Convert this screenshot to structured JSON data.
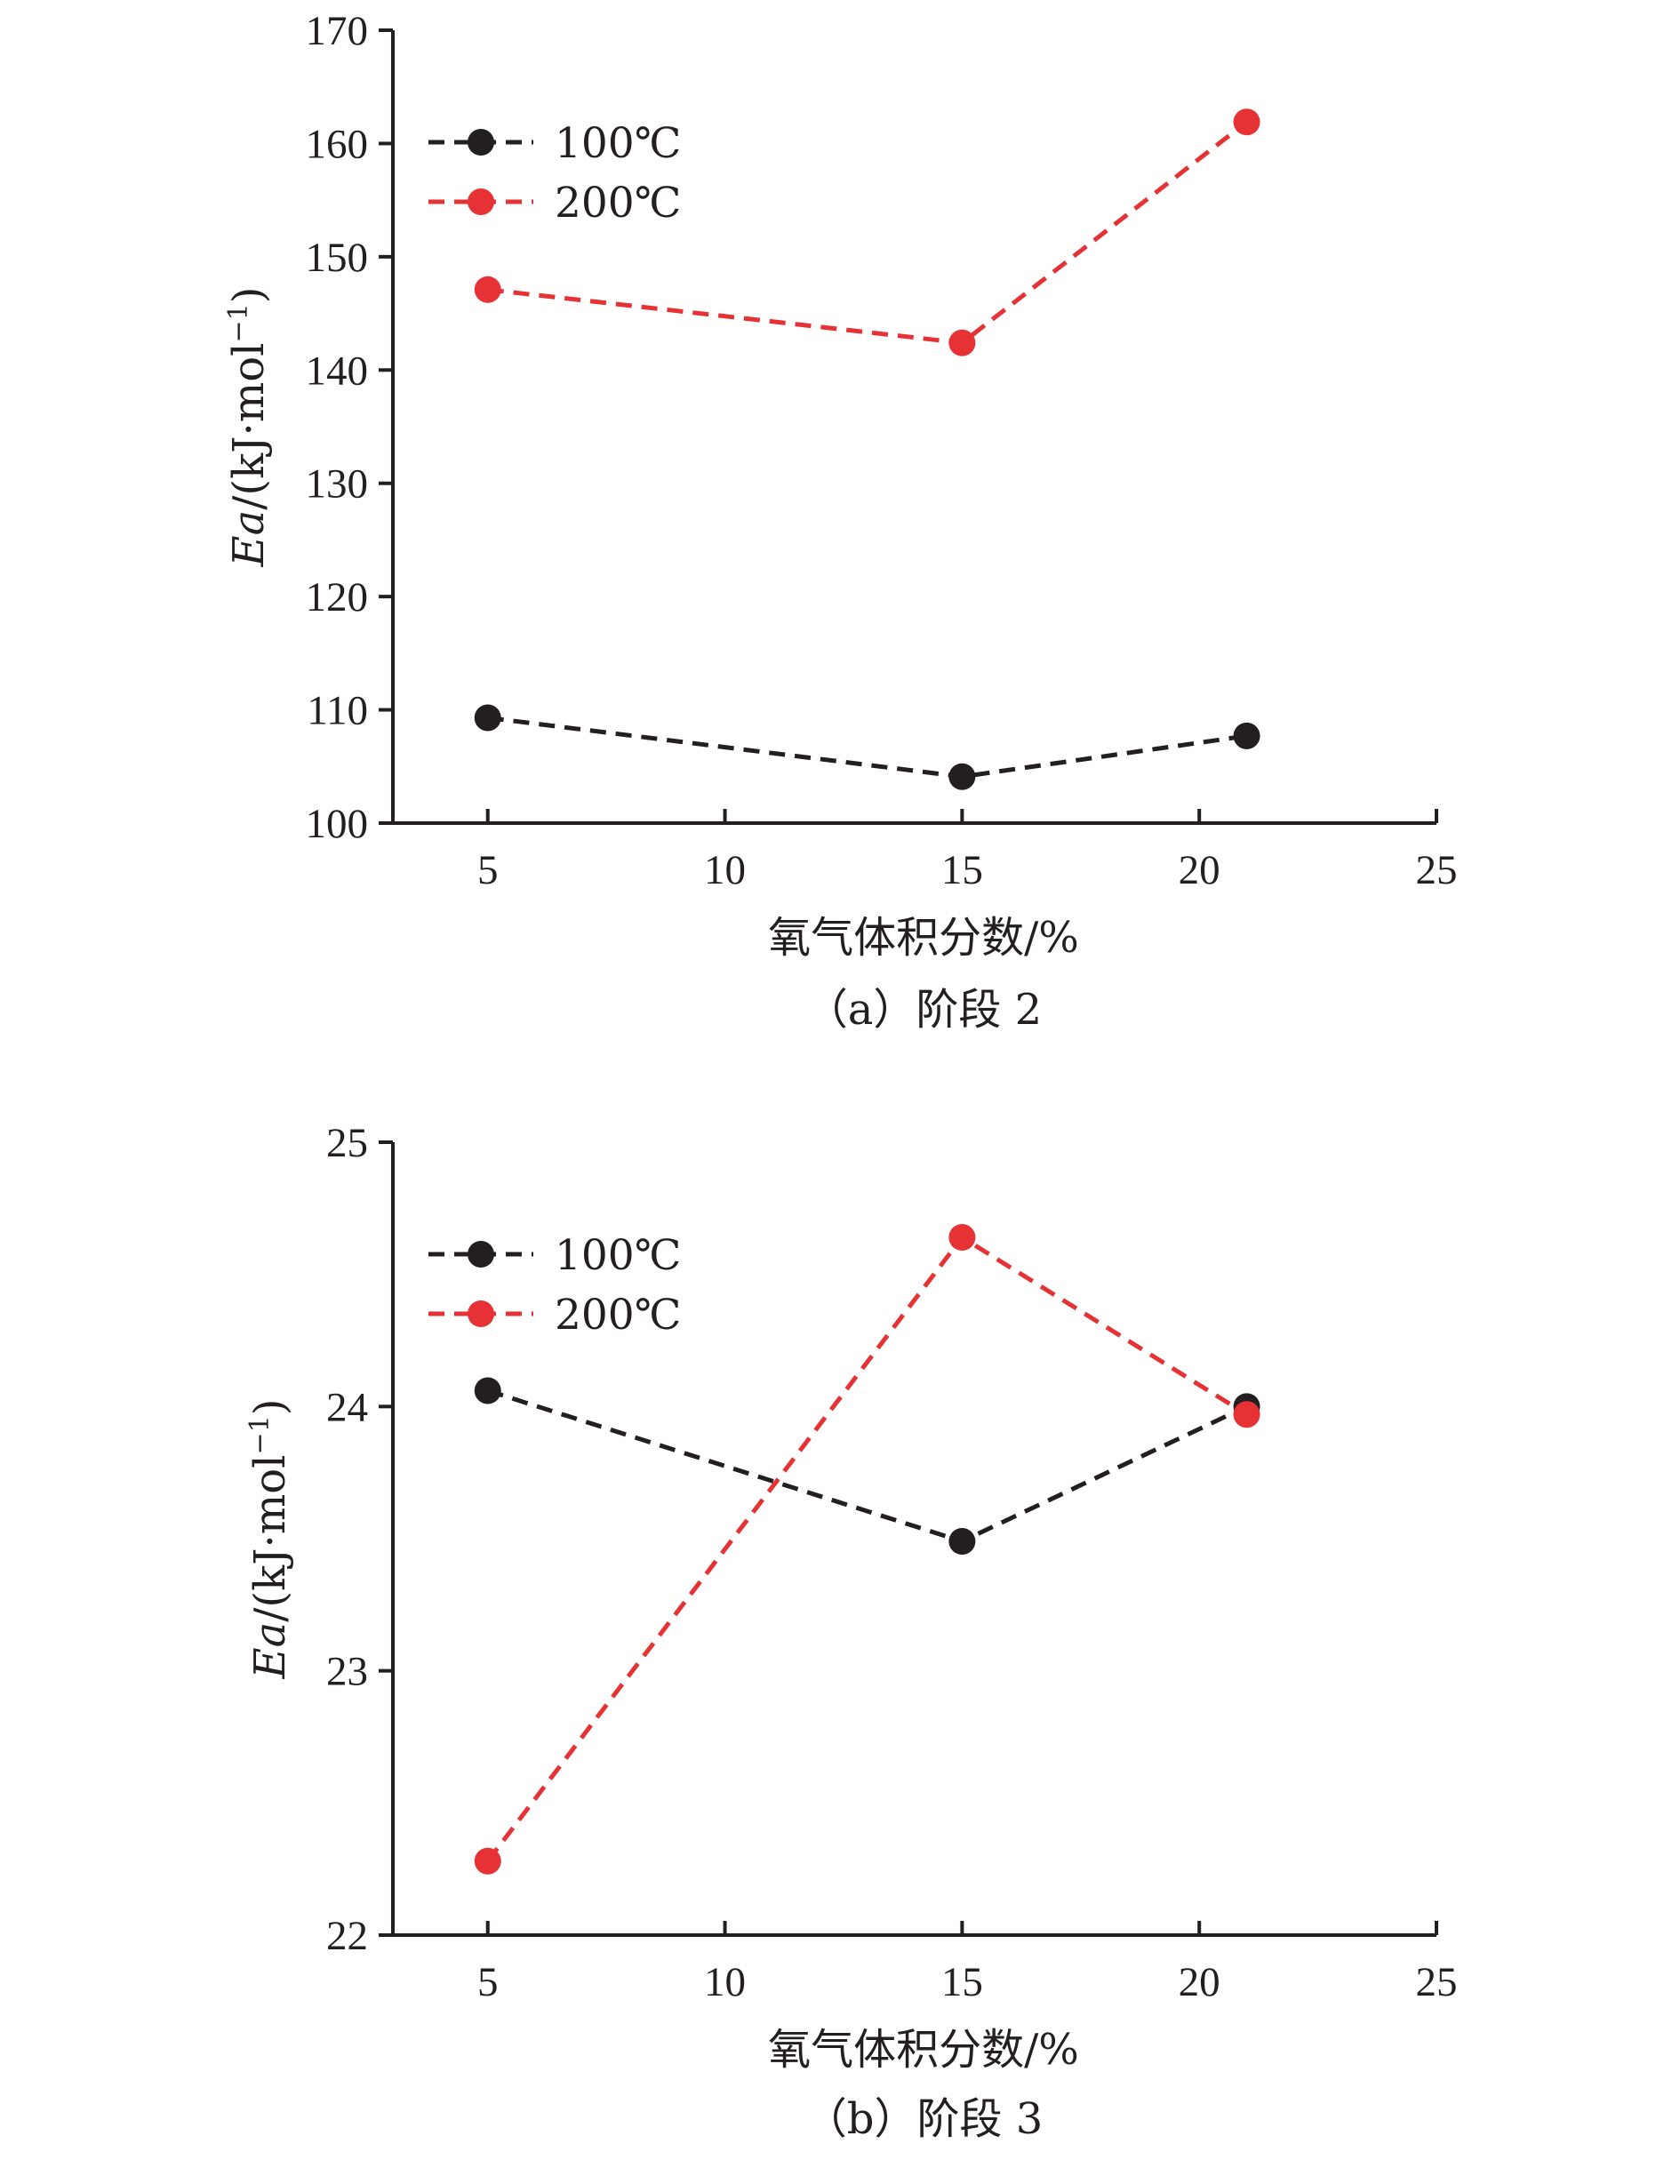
{
  "colors": {
    "axis": "#231f20",
    "series_100": "#231f20",
    "series_200": "#e63234"
  },
  "chart_data": [
    {
      "type": "line",
      "caption": "（a）阶段 2",
      "xlabel": "氧气体积分数/%",
      "ylabel_italic": "Ea",
      "ylabel_rest": "/(kJ·mol",
      "ylabel_sup": "−1",
      "ylabel_end": ")",
      "xlim": [
        3,
        25
      ],
      "ylim": [
        100,
        170
      ],
      "xticks": [
        5,
        10,
        15,
        20,
        25
      ],
      "yticks": [
        100,
        110,
        120,
        130,
        140,
        150,
        160,
        170
      ],
      "grid": false,
      "legend_position": "top-left",
      "series": [
        {
          "name": "100℃",
          "color": "#231f20",
          "x": [
            5,
            15,
            21
          ],
          "y": [
            109.3,
            104.1,
            107.7
          ]
        },
        {
          "name": "200℃",
          "color": "#e63234",
          "x": [
            5,
            15,
            21
          ],
          "y": [
            147.1,
            142.4,
            161.9
          ]
        }
      ]
    },
    {
      "type": "line",
      "caption": "（b）阶段 3",
      "xlabel": "氧气体积分数/%",
      "ylabel_italic": "Ea",
      "ylabel_rest": "/(kJ·mol",
      "ylabel_sup": "−1",
      "ylabel_end": ")",
      "xlim": [
        3,
        25
      ],
      "ylim": [
        22,
        25
      ],
      "xticks": [
        5,
        10,
        15,
        20,
        25
      ],
      "yticks": [
        22,
        23,
        24,
        25
      ],
      "grid": false,
      "legend_position": "top-left",
      "series": [
        {
          "name": "100℃",
          "color": "#231f20",
          "x": [
            5,
            15,
            21
          ],
          "y": [
            24.06,
            23.49,
            24.0
          ]
        },
        {
          "name": "200℃",
          "color": "#e63234",
          "x": [
            5,
            15,
            21
          ],
          "y": [
            22.28,
            24.64,
            23.97
          ]
        }
      ]
    }
  ]
}
